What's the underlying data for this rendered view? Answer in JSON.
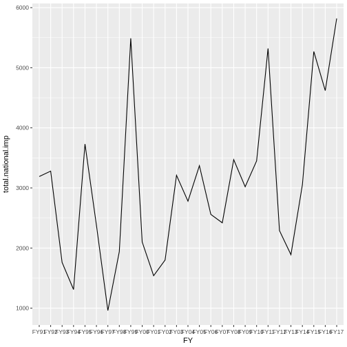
{
  "chart_data": {
    "type": "line",
    "xlabel": "FY",
    "ylabel": "total.national.imp",
    "categories": [
      "FY91",
      "FY92",
      "FY93",
      "FY94",
      "FY95",
      "FY96",
      "FY97",
      "FY98",
      "FY99",
      "FY00",
      "FY01",
      "FY02",
      "FY03",
      "FY04",
      "FY05",
      "FY06",
      "FY07",
      "FY08",
      "FY09",
      "FY10",
      "FY11",
      "FY12",
      "FY13",
      "FY14",
      "FY15",
      "FY16",
      "FY17"
    ],
    "values": [
      3190,
      3280,
      1760,
      1310,
      3730,
      2380,
      960,
      1940,
      5490,
      2100,
      1540,
      1800,
      3210,
      2780,
      3370,
      2560,
      2420,
      3470,
      3020,
      3450,
      5320,
      2290,
      1890,
      3050,
      5270,
      4620,
      5820
    ],
    "ylim": [
      720,
      6070
    ],
    "yticks": [
      1000,
      2000,
      3000,
      4000,
      5000,
      6000
    ],
    "grid": true,
    "legend": "none",
    "colors": {
      "panel": "#ebebeb",
      "grid_major": "#ffffff",
      "line": "#000000"
    }
  }
}
